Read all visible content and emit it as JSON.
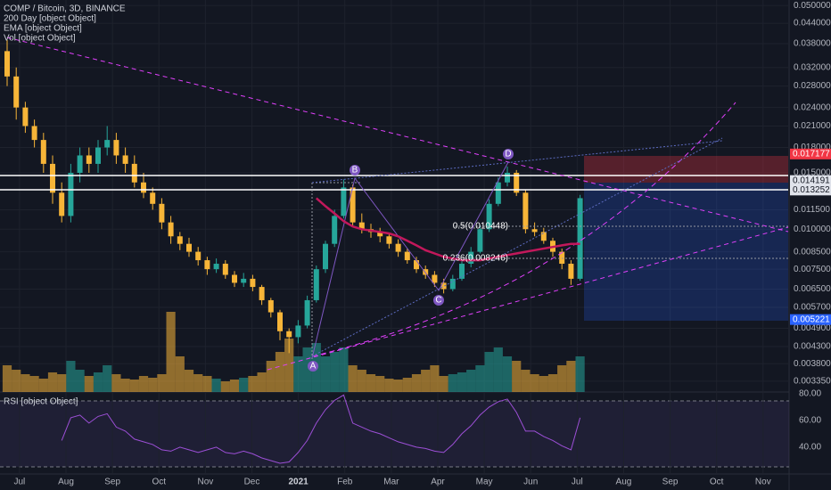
{
  "chart_data": {
    "type": "candlestick",
    "title": "COMP / Bitcoin, 3D, BINANCE",
    "legend": [
      "200 Day [object Object]",
      "EMA [object Object]",
      "Vol [object Object]"
    ],
    "log_scale": true,
    "up_color": "#26a69a",
    "down_color": "#f7b538",
    "open": [
      0.036,
      0.03,
      0.024,
      0.021,
      0.019,
      0.016,
      0.013,
      0.011,
      0.015,
      0.017,
      0.016,
      0.018,
      0.019,
      0.017,
      0.016,
      0.014,
      0.013,
      0.012,
      0.0105,
      0.0095,
      0.009,
      0.0085,
      0.008,
      0.0075,
      0.0078,
      0.0072,
      0.0068,
      0.007,
      0.0066,
      0.006,
      0.0055,
      0.0048,
      0.0046,
      0.005,
      0.006,
      0.0075,
      0.009,
      0.011,
      0.0135,
      0.0105,
      0.01,
      0.0098,
      0.0095,
      0.009,
      0.0085,
      0.008,
      0.0075,
      0.0072,
      0.0068,
      0.0065,
      0.007,
      0.0078,
      0.0085,
      0.01,
      0.012,
      0.014,
      0.015,
      0.013,
      0.01,
      0.0098,
      0.0092,
      0.0085,
      0.0078,
      0.007
    ],
    "high": [
      0.039,
      0.032,
      0.025,
      0.022,
      0.02,
      0.017,
      0.014,
      0.016,
      0.018,
      0.018,
      0.019,
      0.021,
      0.02,
      0.018,
      0.017,
      0.015,
      0.0135,
      0.0125,
      0.011,
      0.0098,
      0.0094,
      0.0088,
      0.0082,
      0.0081,
      0.008,
      0.0074,
      0.0073,
      0.0072,
      0.0067,
      0.0061,
      0.0056,
      0.0049,
      0.0052,
      0.0062,
      0.0077,
      0.0092,
      0.0115,
      0.0143,
      0.0138,
      0.0112,
      0.0104,
      0.0101,
      0.0097,
      0.0093,
      0.0087,
      0.0082,
      0.0077,
      0.0074,
      0.007,
      0.0072,
      0.008,
      0.0088,
      0.0103,
      0.0124,
      0.0145,
      0.0157,
      0.0153,
      0.0133,
      0.0105,
      0.0101,
      0.0094,
      0.0087,
      0.008,
      0.0128
    ],
    "low": [
      0.028,
      0.022,
      0.02,
      0.018,
      0.015,
      0.012,
      0.0105,
      0.0105,
      0.014,
      0.015,
      0.015,
      0.017,
      0.016,
      0.015,
      0.0135,
      0.0125,
      0.0115,
      0.01,
      0.009,
      0.0086,
      0.0082,
      0.0077,
      0.0072,
      0.0073,
      0.007,
      0.0066,
      0.0066,
      0.0064,
      0.0058,
      0.0053,
      0.0045,
      0.0041,
      0.0044,
      0.0049,
      0.0059,
      0.0073,
      0.0088,
      0.0108,
      0.0102,
      0.0097,
      0.0094,
      0.0091,
      0.0087,
      0.0082,
      0.0078,
      0.0073,
      0.007,
      0.0066,
      0.0063,
      0.0064,
      0.0069,
      0.0076,
      0.0084,
      0.0098,
      0.0118,
      0.0136,
      0.0127,
      0.0097,
      0.0095,
      0.009,
      0.0082,
      0.0075,
      0.0067,
      0.0069
    ],
    "close": [
      0.03,
      0.024,
      0.021,
      0.019,
      0.016,
      0.013,
      0.011,
      0.015,
      0.017,
      0.016,
      0.018,
      0.019,
      0.017,
      0.016,
      0.014,
      0.013,
      0.012,
      0.0105,
      0.0095,
      0.009,
      0.0085,
      0.008,
      0.0075,
      0.0078,
      0.0072,
      0.0068,
      0.007,
      0.0066,
      0.006,
      0.0055,
      0.0048,
      0.0046,
      0.005,
      0.006,
      0.0075,
      0.009,
      0.011,
      0.0135,
      0.0105,
      0.01,
      0.0098,
      0.0095,
      0.009,
      0.0085,
      0.008,
      0.0075,
      0.0072,
      0.0068,
      0.0065,
      0.007,
      0.0078,
      0.0085,
      0.01,
      0.012,
      0.014,
      0.015,
      0.013,
      0.01,
      0.0098,
      0.0092,
      0.0085,
      0.0078,
      0.007,
      0.0125
    ],
    "series": [
      {
        "name": "EMA [object Object]",
        "color": "#c2185b",
        "values": [
          null,
          null,
          null,
          null,
          null,
          null,
          null,
          null,
          null,
          null,
          null,
          null,
          null,
          null,
          null,
          null,
          null,
          null,
          null,
          null,
          null,
          null,
          null,
          null,
          null,
          null,
          null,
          null,
          null,
          null,
          null,
          null,
          null,
          null,
          0.0125,
          0.0118,
          0.0112,
          0.0106,
          0.0102,
          0.01,
          0.0099,
          0.0098,
          0.0097,
          0.0095,
          0.0092,
          0.0089,
          0.0086,
          0.0084,
          0.0082,
          0.0081,
          0.008,
          0.008,
          0.008,
          0.0081,
          0.0082,
          0.0083,
          0.0084,
          0.0085,
          0.0086,
          0.0087,
          0.0088,
          0.0089,
          0.009,
          0.009
        ]
      }
    ],
    "volume": {
      "name": "Vol [object Object]",
      "values": [
        30,
        25,
        20,
        18,
        15,
        22,
        20,
        35,
        25,
        18,
        22,
        30,
        20,
        15,
        14,
        18,
        16,
        20,
        90,
        40,
        25,
        20,
        18,
        15,
        12,
        14,
        16,
        18,
        22,
        35,
        45,
        60,
        40,
        50,
        55,
        40,
        45,
        50,
        30,
        25,
        20,
        18,
        15,
        14,
        16,
        20,
        25,
        30,
        18,
        20,
        22,
        25,
        30,
        45,
        50,
        40,
        35,
        25,
        20,
        18,
        20,
        30,
        35,
        40
      ]
    },
    "ylim": [
      0.0031,
      0.052
    ],
    "yticks": [
      {
        "value": 0.05,
        "label": "0.050000"
      },
      {
        "value": 0.044,
        "label": "0.044000"
      },
      {
        "value": 0.038,
        "label": "0.038000"
      },
      {
        "value": 0.032,
        "label": "0.032000"
      },
      {
        "value": 0.028,
        "label": "0.028000"
      },
      {
        "value": 0.024,
        "label": "0.024000"
      },
      {
        "value": 0.021,
        "label": "0.021000"
      },
      {
        "value": 0.018,
        "label": "0.018000"
      },
      {
        "value": 0.015,
        "label": "0.015000"
      },
      {
        "value": 0.0115,
        "label": "0.011500"
      },
      {
        "value": 0.01,
        "label": "0.010000"
      },
      {
        "value": 0.0085,
        "label": "0.008500"
      },
      {
        "value": 0.0075,
        "label": "0.007500"
      },
      {
        "value": 0.0065,
        "label": "0.006500"
      },
      {
        "value": 0.0057,
        "label": "0.005700"
      },
      {
        "value": 0.0049,
        "label": "0.004900"
      },
      {
        "value": 0.0043,
        "label": "0.004300"
      },
      {
        "value": 0.0038,
        "label": "0.003800"
      },
      {
        "value": 0.00335,
        "label": "0.003350"
      }
    ],
    "xlim": [
      -0.42,
      16.56
    ],
    "xticks": [
      {
        "value": 0,
        "label": "Jul"
      },
      {
        "value": 1,
        "label": "Aug"
      },
      {
        "value": 2,
        "label": "Sep"
      },
      {
        "value": 3,
        "label": "Oct"
      },
      {
        "value": 4,
        "label": "Nov"
      },
      {
        "value": 5,
        "label": "Dec"
      },
      {
        "value": 6,
        "label": "2021"
      },
      {
        "value": 7,
        "label": "Feb"
      },
      {
        "value": 8,
        "label": "Mar"
      },
      {
        "value": 9,
        "label": "Apr"
      },
      {
        "value": 10,
        "label": "May"
      },
      {
        "value": 11,
        "label": "Jun"
      },
      {
        "value": 12,
        "label": "Jul"
      },
      {
        "value": 13,
        "label": "Aug"
      },
      {
        "value": 14,
        "label": "Sep"
      },
      {
        "value": 15,
        "label": "Oct"
      },
      {
        "value": 16,
        "label": "Nov"
      }
    ],
    "price_tags": [
      {
        "value": 0.017177,
        "color": "#f23645"
      },
      {
        "value": 0.014191,
        "color": "#e0e3eb"
      },
      {
        "value": 0.013252,
        "color": "#e0e3eb"
      },
      {
        "value": 0.005221,
        "color": "#2962ff"
      }
    ],
    "annotations": {
      "waves": [
        "A",
        "B",
        "C",
        "D"
      ],
      "fib": [
        "0.5(0.010448)",
        "0.236(0.008246)"
      ]
    },
    "rsi": {
      "name": "RSI [object Object]",
      "color": "#9c4fd6",
      "ylim": [
        21.3,
        81.3
      ],
      "yticks": [
        {
          "value": 80,
          "label": "80.00"
        },
        {
          "value": 60,
          "label": "60.00"
        },
        {
          "value": 40,
          "label": "40.00"
        }
      ],
      "values": [
        null,
        null,
        null,
        null,
        null,
        null,
        45,
        62,
        64,
        58,
        63,
        65,
        55,
        52,
        46,
        44,
        42,
        38,
        37,
        40,
        38,
        36,
        38,
        40,
        36,
        35,
        37,
        35,
        32,
        30,
        28,
        29,
        36,
        45,
        58,
        68,
        75,
        79,
        58,
        55,
        52,
        50,
        47,
        44,
        42,
        40,
        39,
        37,
        36,
        42,
        50,
        56,
        64,
        70,
        74,
        76,
        66,
        52,
        52,
        48,
        45,
        41,
        38,
        62
      ]
    }
  }
}
